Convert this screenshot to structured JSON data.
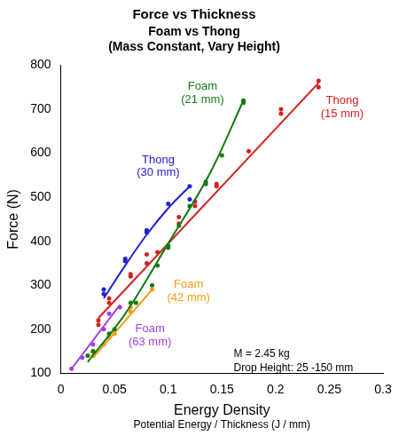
{
  "chart_data": {
    "type": "scatter",
    "title": "Force vs Thickness",
    "subtitle": [
      "Foam vs Thong",
      "(Mass Constant, Vary Height)"
    ],
    "xlabel": [
      "Energy Density",
      "Potential Energy / Thickness (J / mm)"
    ],
    "ylabel": "Force (N)",
    "xlim": [
      0,
      0.3
    ],
    "xticks": [
      0,
      0.05,
      0.1,
      0.15,
      0.2,
      0.25,
      0.3
    ],
    "ylim": [
      100,
      800
    ],
    "yticks": [
      100,
      200,
      300,
      400,
      500,
      600,
      700,
      800
    ],
    "grid": false,
    "annotations": [
      "M = 2.45 kg",
      "Drop Height: 25 -150 mm"
    ],
    "series": [
      {
        "name": "Thong (30 mm)",
        "color": "#2020d0",
        "marker": "circle",
        "line_style": "solid",
        "x": [
          0.04,
          0.04,
          0.06,
          0.06,
          0.08,
          0.08,
          0.1,
          0.12,
          0.12
        ],
        "values": [
          290,
          280,
          360,
          355,
          425,
          420,
          485,
          525,
          495
        ],
        "fit_x": [
          0.04,
          0.06,
          0.08,
          0.1,
          0.12
        ],
        "fit_values": [
          270,
          345,
          415,
          475,
          525
        ]
      },
      {
        "name": "Foam (21 mm)",
        "color": "#127a12",
        "marker": "circle",
        "line_style": "solid",
        "x": [
          0.025,
          0.03,
          0.045,
          0.05,
          0.065,
          0.07,
          0.085,
          0.09,
          0.1,
          0.1,
          0.11,
          0.12,
          0.135,
          0.135,
          0.15,
          0.17,
          0.17
        ],
        "values": [
          140,
          150,
          190,
          200,
          260,
          260,
          300,
          345,
          390,
          385,
          435,
          480,
          530,
          535,
          595,
          720,
          715
        ],
        "fit_x": [
          0.025,
          0.06,
          0.1,
          0.14,
          0.17
        ],
        "fit_values": [
          125,
          235,
          395,
          560,
          720
        ]
      },
      {
        "name": "Thong (15 mm)",
        "color": "#d42020",
        "marker": "circle",
        "line_style": "solid",
        "x": [
          0.035,
          0.035,
          0.045,
          0.045,
          0.065,
          0.065,
          0.08,
          0.08,
          0.09,
          0.11,
          0.11,
          0.125,
          0.125,
          0.145,
          0.145,
          0.175,
          0.205,
          0.205,
          0.24,
          0.24
        ],
        "values": [
          220,
          210,
          270,
          260,
          325,
          320,
          370,
          350,
          375,
          455,
          440,
          480,
          490,
          530,
          525,
          605,
          700,
          690,
          765,
          750
        ],
        "fit_x": [
          0.035,
          0.24
        ],
        "fit_values": [
          225,
          760
        ]
      },
      {
        "name": "Foam (42 mm)",
        "color": "#f39c12",
        "marker": "circle",
        "line_style": "solid",
        "x": [
          0.03,
          0.03,
          0.04,
          0.045,
          0.05,
          0.065,
          0.065,
          0.085
        ],
        "values": [
          140,
          150,
          165,
          180,
          190,
          240,
          250,
          290
        ],
        "fit_x": [
          0.03,
          0.085
        ],
        "fit_values": [
          135,
          290
        ]
      },
      {
        "name": "Foam (63 mm)",
        "color": "#a040e0",
        "marker": "circle",
        "line_style": "solid",
        "x": [
          0.01,
          0.02,
          0.03,
          0.04,
          0.045,
          0.055
        ],
        "values": [
          110,
          135,
          165,
          200,
          235,
          250
        ],
        "fit_x": [
          0.01,
          0.055
        ],
        "fit_values": [
          110,
          255
        ]
      }
    ]
  }
}
